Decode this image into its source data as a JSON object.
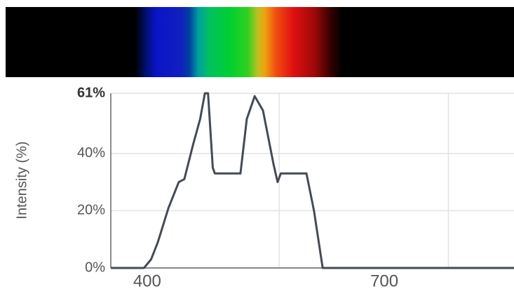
{
  "chart_data": {
    "type": "line",
    "y_label": "Intensity (%)",
    "x": [
      354,
      396,
      405,
      413.5,
      427,
      440,
      447,
      458,
      467,
      473,
      477,
      483,
      485.6,
      518,
      526,
      536,
      546.5,
      560,
      565,
      569,
      601.5,
      611,
      622,
      864
    ],
    "series": [
      {
        "color": "#444b55",
        "values": [
          0,
          0,
          3,
          9,
          21,
          30,
          31,
          43,
          52,
          61,
          61,
          35,
          33,
          33,
          52,
          60,
          55,
          36,
          30,
          33,
          33,
          20,
          0,
          0
        ]
      }
    ],
    "xlim": [
      354,
      864
    ],
    "xticks": [
      400,
      700
    ],
    "xgrid": [
      567,
      781
    ],
    "ylim": [
      0,
      61
    ],
    "yticks": [
      {
        "value": 0,
        "label": "0%"
      },
      {
        "value": 20,
        "label": "20%"
      },
      {
        "value": 40,
        "label": "40%"
      },
      {
        "value": 61,
        "label": "61%"
      }
    ],
    "grid": true
  }
}
